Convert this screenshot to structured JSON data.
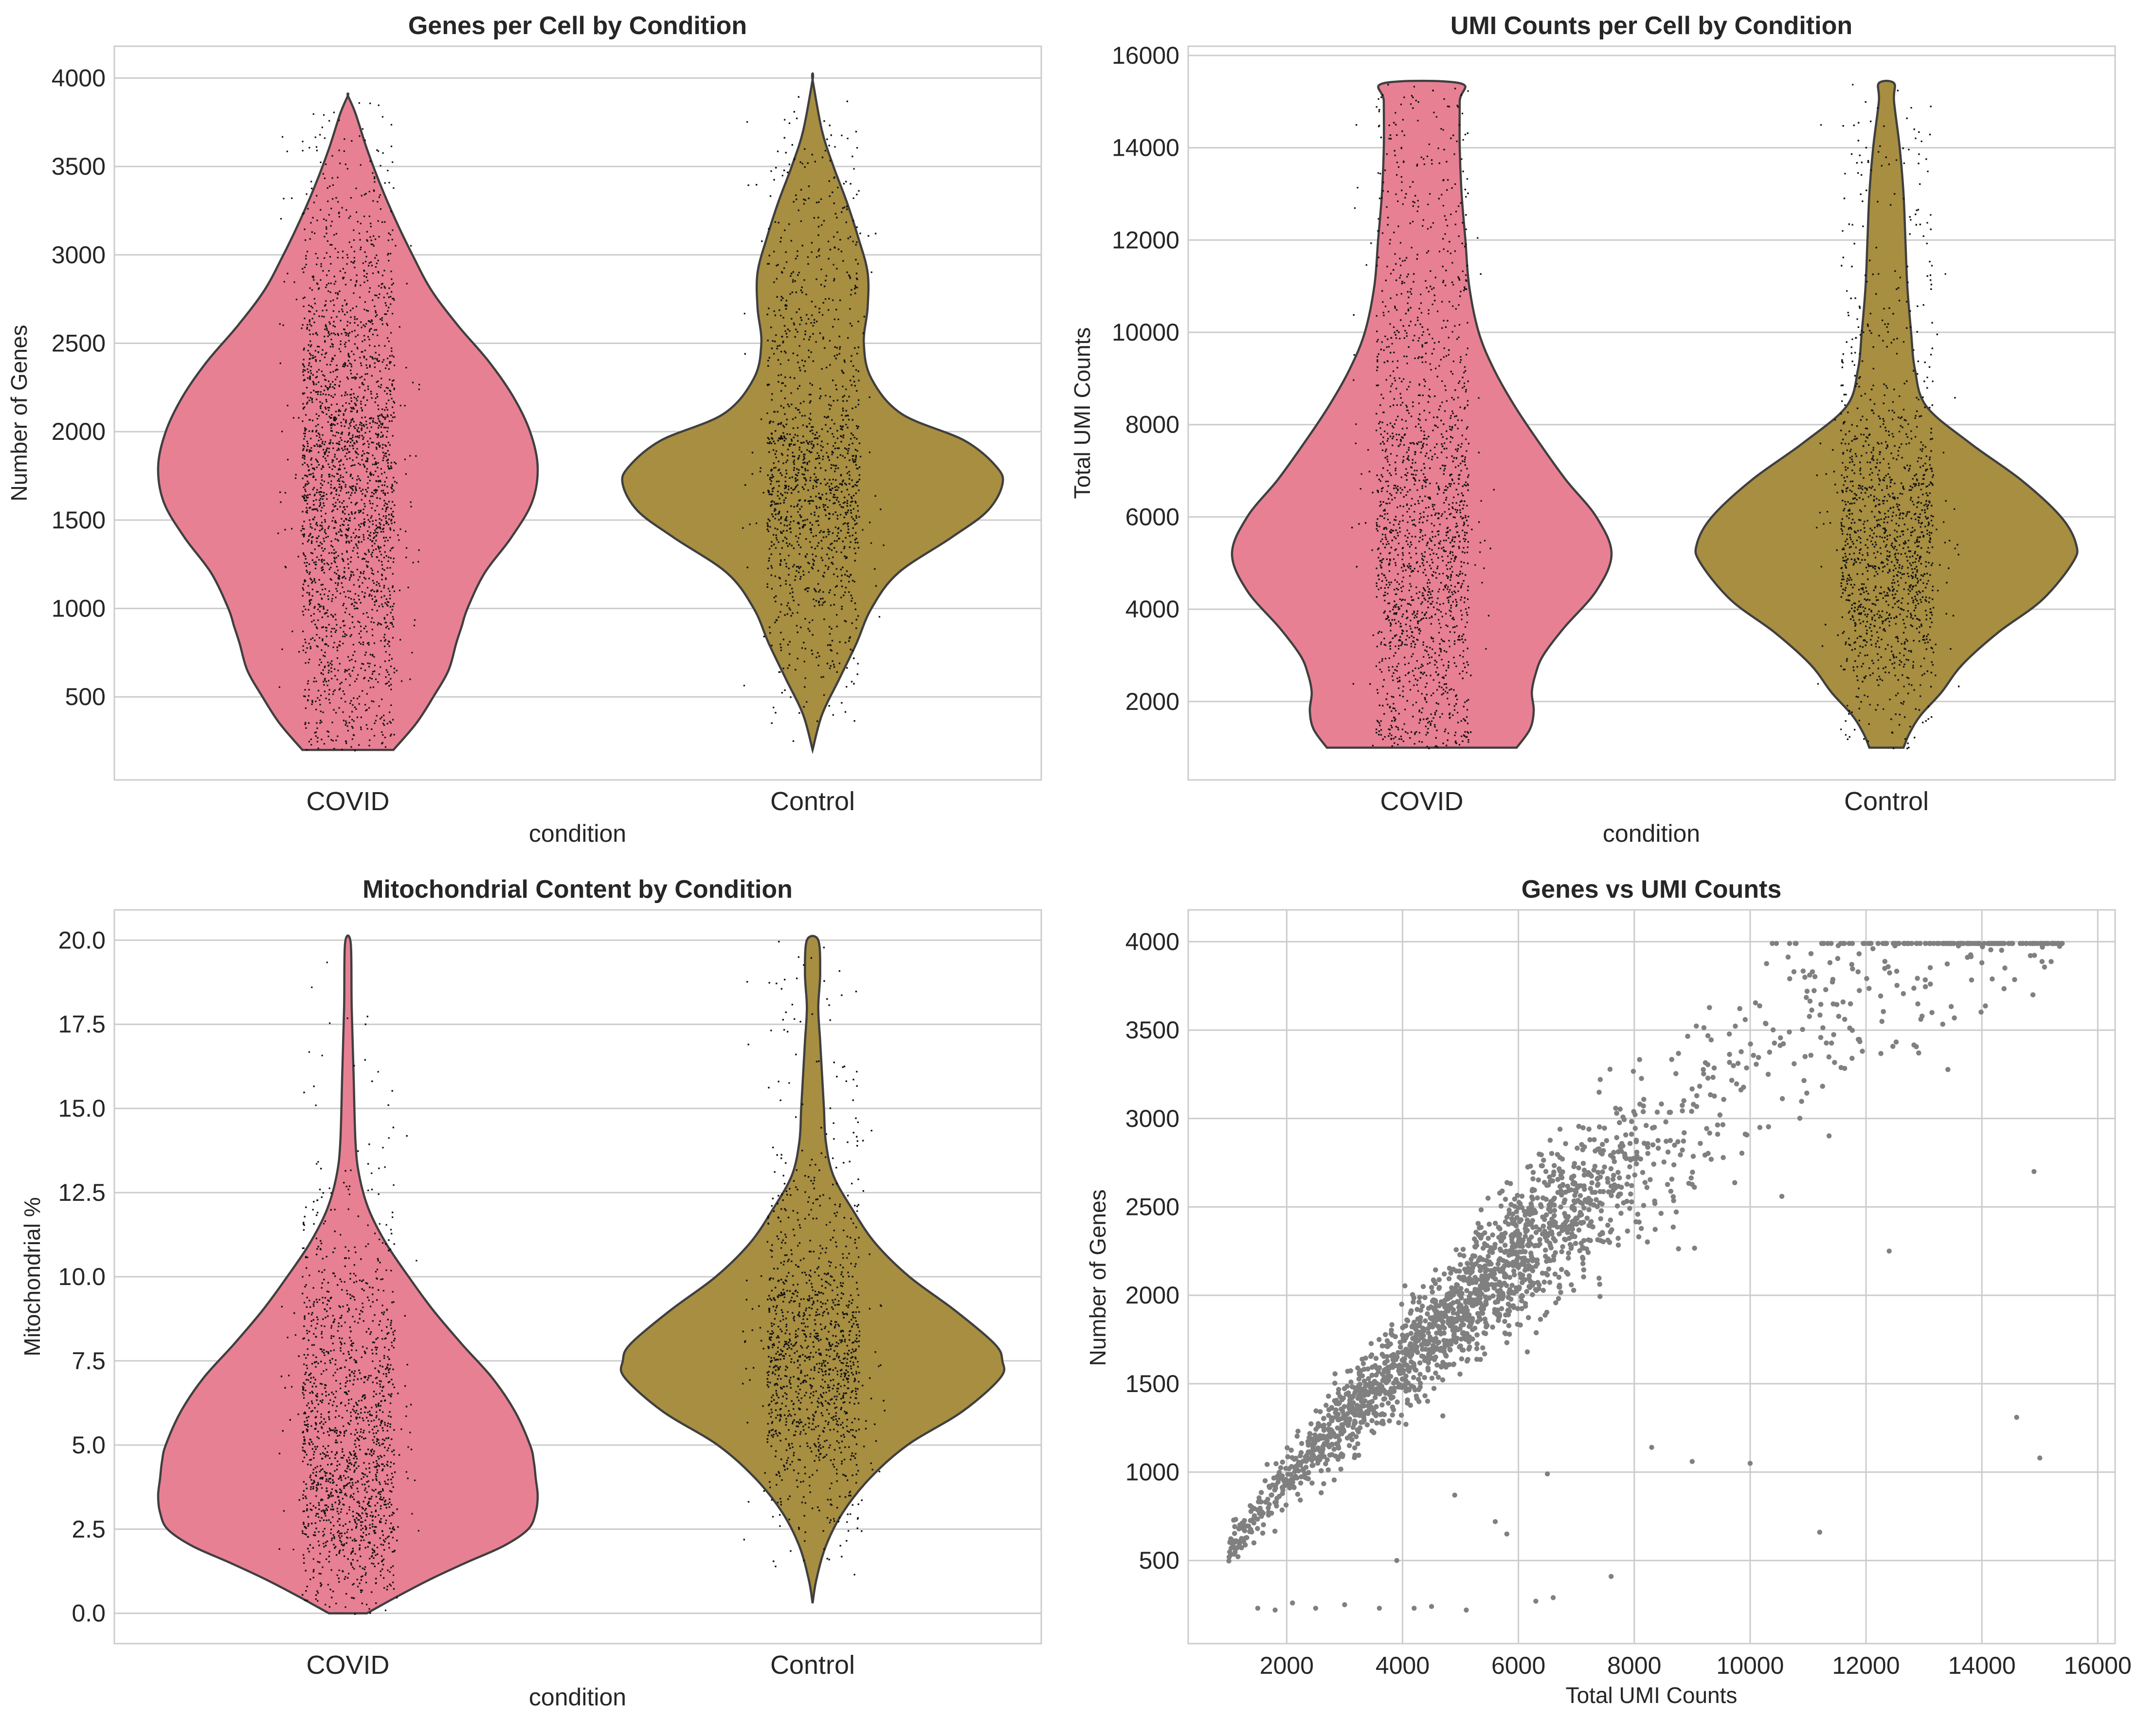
{
  "chart_data": [
    {
      "type": "violin",
      "title": "Genes per Cell by Condition",
      "xlabel": "condition",
      "ylabel": "Number of Genes",
      "categories": [
        "COVID",
        "Control"
      ],
      "ylim": [
        30,
        4180
      ],
      "yticks": [
        500,
        1000,
        1500,
        2000,
        2500,
        3000,
        3500,
        4000
      ],
      "colors": [
        "#e88094",
        "#a78e41"
      ],
      "violins": [
        {
          "category": "COVID",
          "range": [
            200,
            3900
          ],
          "profile": [
            [
              200,
              0.24
            ],
            [
              350,
              0.36
            ],
            [
              500,
              0.45
            ],
            [
              650,
              0.53
            ],
            [
              800,
              0.57
            ],
            [
              900,
              0.6
            ],
            [
              1000,
              0.63
            ],
            [
              1200,
              0.72
            ],
            [
              1400,
              0.86
            ],
            [
              1600,
              0.97
            ],
            [
              1800,
              1.0
            ],
            [
              2000,
              0.96
            ],
            [
              2200,
              0.87
            ],
            [
              2400,
              0.74
            ],
            [
              2600,
              0.58
            ],
            [
              2800,
              0.44
            ],
            [
              3000,
              0.34
            ],
            [
              3200,
              0.25
            ],
            [
              3400,
              0.17
            ],
            [
              3600,
              0.1
            ],
            [
              3800,
              0.04
            ],
            [
              3900,
              0.0
            ]
          ]
        },
        {
          "category": "Control",
          "range": [
            200,
            3990
          ],
          "profile": [
            [
              200,
              0.0
            ],
            [
              400,
              0.05
            ],
            [
              600,
              0.14
            ],
            [
              800,
              0.23
            ],
            [
              1000,
              0.31
            ],
            [
              1200,
              0.45
            ],
            [
              1400,
              0.73
            ],
            [
              1550,
              0.92
            ],
            [
              1700,
              1.0
            ],
            [
              1800,
              0.97
            ],
            [
              1950,
              0.8
            ],
            [
              2100,
              0.47
            ],
            [
              2300,
              0.31
            ],
            [
              2500,
              0.27
            ],
            [
              2700,
              0.29
            ],
            [
              2900,
              0.29
            ],
            [
              3100,
              0.24
            ],
            [
              3300,
              0.18
            ],
            [
              3500,
              0.11
            ],
            [
              3700,
              0.05
            ],
            [
              3990,
              0.0
            ]
          ]
        }
      ]
    },
    {
      "type": "violin",
      "title": "UMI Counts per Cell by Condition",
      "xlabel": "condition",
      "ylabel": "Total UMI Counts",
      "categories": [
        "COVID",
        "Control"
      ],
      "ylim": [
        300,
        16200
      ],
      "yticks": [
        2000,
        4000,
        6000,
        8000,
        10000,
        12000,
        14000,
        16000
      ],
      "colors": [
        "#e88094",
        "#a78e41"
      ],
      "violins": [
        {
          "category": "COVID",
          "range": [
            1000,
            15400
          ],
          "profile": [
            [
              1000,
              0.5
            ],
            [
              1400,
              0.57
            ],
            [
              1800,
              0.59
            ],
            [
              2200,
              0.58
            ],
            [
              2600,
              0.6
            ],
            [
              3000,
              0.64
            ],
            [
              3600,
              0.75
            ],
            [
              4400,
              0.92
            ],
            [
              5200,
              1.0
            ],
            [
              6000,
              0.92
            ],
            [
              6800,
              0.76
            ],
            [
              7600,
              0.62
            ],
            [
              8400,
              0.49
            ],
            [
              9200,
              0.38
            ],
            [
              10000,
              0.3
            ],
            [
              11000,
              0.25
            ],
            [
              12000,
              0.23
            ],
            [
              13000,
              0.21
            ],
            [
              14000,
              0.2
            ],
            [
              15000,
              0.2
            ],
            [
              15400,
              0.2
            ]
          ]
        },
        {
          "category": "Control",
          "range": [
            1000,
            15400
          ],
          "profile": [
            [
              1000,
              0.09
            ],
            [
              1300,
              0.12
            ],
            [
              1700,
              0.18
            ],
            [
              2200,
              0.29
            ],
            [
              2800,
              0.4
            ],
            [
              3500,
              0.59
            ],
            [
              4200,
              0.82
            ],
            [
              5000,
              0.98
            ],
            [
              5400,
              1.0
            ],
            [
              6000,
              0.92
            ],
            [
              6800,
              0.71
            ],
            [
              7600,
              0.44
            ],
            [
              8400,
              0.21
            ],
            [
              9200,
              0.15
            ],
            [
              10000,
              0.13
            ],
            [
              11000,
              0.11
            ],
            [
              12000,
              0.1
            ],
            [
              13000,
              0.09
            ],
            [
              14000,
              0.07
            ],
            [
              15000,
              0.04
            ],
            [
              15400,
              0.04
            ]
          ]
        }
      ]
    },
    {
      "type": "violin",
      "title": "Mitochondrial Content by Condition",
      "xlabel": "condition",
      "ylabel": "Mitochondrial %",
      "categories": [
        "COVID",
        "Control"
      ],
      "ylim": [
        -0.9,
        20.9
      ],
      "yticks": [
        0.0,
        2.5,
        5.0,
        7.5,
        10.0,
        12.5,
        15.0,
        17.5,
        20.0
      ],
      "tick_labels": [
        "0.0",
        "2.5",
        "5.0",
        "7.5",
        "10.0",
        "12.5",
        "15.0",
        "17.5",
        "20.0"
      ],
      "colors": [
        "#e88094",
        "#a78e41"
      ],
      "violins": [
        {
          "category": "COVID",
          "range": [
            0.0,
            19.9
          ],
          "profile": [
            [
              0.0,
              0.1
            ],
            [
              0.5,
              0.26
            ],
            [
              1.0,
              0.43
            ],
            [
              1.5,
              0.62
            ],
            [
              2.0,
              0.82
            ],
            [
              2.5,
              0.95
            ],
            [
              3.0,
              0.99
            ],
            [
              3.5,
              1.0
            ],
            [
              4.0,
              0.99
            ],
            [
              4.5,
              0.98
            ],
            [
              5.0,
              0.96
            ],
            [
              6.0,
              0.88
            ],
            [
              7.0,
              0.76
            ],
            [
              8.0,
              0.6
            ],
            [
              9.0,
              0.45
            ],
            [
              10.0,
              0.32
            ],
            [
              11.0,
              0.2
            ],
            [
              12.0,
              0.11
            ],
            [
              13.0,
              0.06
            ],
            [
              14.0,
              0.04
            ],
            [
              16.0,
              0.03
            ],
            [
              18.0,
              0.02
            ],
            [
              19.9,
              0.015
            ]
          ]
        },
        {
          "category": "Control",
          "range": [
            0.3,
            20.0
          ],
          "profile": [
            [
              0.3,
              0.0
            ],
            [
              1.0,
              0.02
            ],
            [
              2.0,
              0.07
            ],
            [
              3.0,
              0.16
            ],
            [
              4.0,
              0.3
            ],
            [
              5.0,
              0.5
            ],
            [
              6.0,
              0.79
            ],
            [
              7.0,
              0.99
            ],
            [
              7.5,
              1.0
            ],
            [
              8.0,
              0.96
            ],
            [
              9.0,
              0.75
            ],
            [
              10.0,
              0.51
            ],
            [
              11.0,
              0.33
            ],
            [
              12.0,
              0.21
            ],
            [
              13.0,
              0.11
            ],
            [
              14.0,
              0.07
            ],
            [
              15.0,
              0.06
            ],
            [
              16.0,
              0.05
            ],
            [
              17.0,
              0.04
            ],
            [
              18.0,
              0.03
            ],
            [
              19.0,
              0.04
            ],
            [
              20.0,
              0.03
            ]
          ]
        }
      ]
    },
    {
      "type": "scatter",
      "title": "Genes vs UMI Counts",
      "xlabel": "Total UMI Counts",
      "ylabel": "Number of Genes",
      "xlim": [
        300,
        16300
      ],
      "ylim": [
        30,
        4180
      ],
      "xticks": [
        2000,
        4000,
        6000,
        8000,
        10000,
        12000,
        14000,
        16000
      ],
      "yticks": [
        500,
        1000,
        1500,
        2000,
        2500,
        3000,
        3500,
        4000
      ],
      "color": "#808080",
      "outliers": [
        [
          1500,
          230
        ],
        [
          1800,
          220
        ],
        [
          2100,
          260
        ],
        [
          2500,
          230
        ],
        [
          3000,
          250
        ],
        [
          3600,
          230
        ],
        [
          4200,
          230
        ],
        [
          4500,
          240
        ],
        [
          5100,
          220
        ],
        [
          6300,
          270
        ],
        [
          6600,
          290
        ],
        [
          7600,
          410
        ],
        [
          3900,
          500
        ],
        [
          4900,
          870
        ],
        [
          5600,
          720
        ],
        [
          5800,
          650
        ],
        [
          6500,
          990
        ],
        [
          8300,
          1140
        ],
        [
          9000,
          1060
        ],
        [
          10000,
          1050
        ],
        [
          11200,
          660
        ],
        [
          14600,
          1310
        ],
        [
          15000,
          1080
        ],
        [
          14900,
          2700
        ],
        [
          12400,
          2250
        ]
      ]
    }
  ]
}
